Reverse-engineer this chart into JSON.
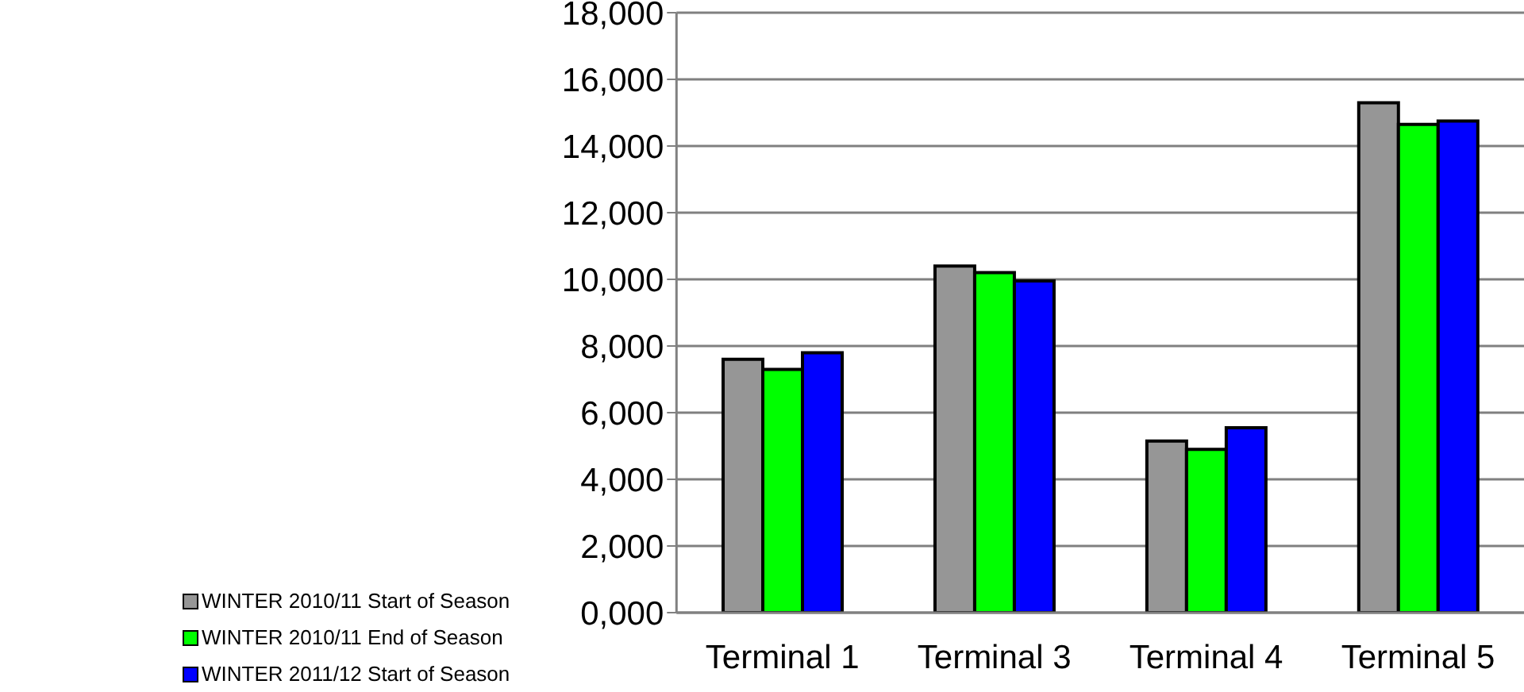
{
  "chart_data": {
    "type": "bar",
    "categories": [
      "Terminal 1",
      "Terminal 3",
      "Terminal 4",
      "Terminal 5"
    ],
    "series": [
      {
        "name": "WINTER 2010/11 Start of Season",
        "color": "#969696",
        "values": [
          7600,
          10400,
          5150,
          15300
        ]
      },
      {
        "name": "WINTER 2010/11 End of Season",
        "color": "#00ff00",
        "values": [
          7300,
          10200,
          4900,
          14650
        ]
      },
      {
        "name": "WINTER 2011/12 Start of Season",
        "color": "#0000ff",
        "values": [
          7800,
          9950,
          5550,
          14750
        ]
      }
    ],
    "ylim": [
      0,
      18000
    ],
    "yticks": [
      {
        "value": 0,
        "label": "0,000"
      },
      {
        "value": 2000,
        "label": "2,000"
      },
      {
        "value": 4000,
        "label": "4,000"
      },
      {
        "value": 6000,
        "label": "6,000"
      },
      {
        "value": 8000,
        "label": "8,000"
      },
      {
        "value": 10000,
        "label": "10,000"
      },
      {
        "value": 12000,
        "label": "12,000"
      },
      {
        "value": 14000,
        "label": "14,000"
      },
      {
        "value": 16000,
        "label": "16,000"
      },
      {
        "value": 18000,
        "label": "18,000"
      }
    ],
    "grid": "y",
    "legend": "bottom left"
  }
}
